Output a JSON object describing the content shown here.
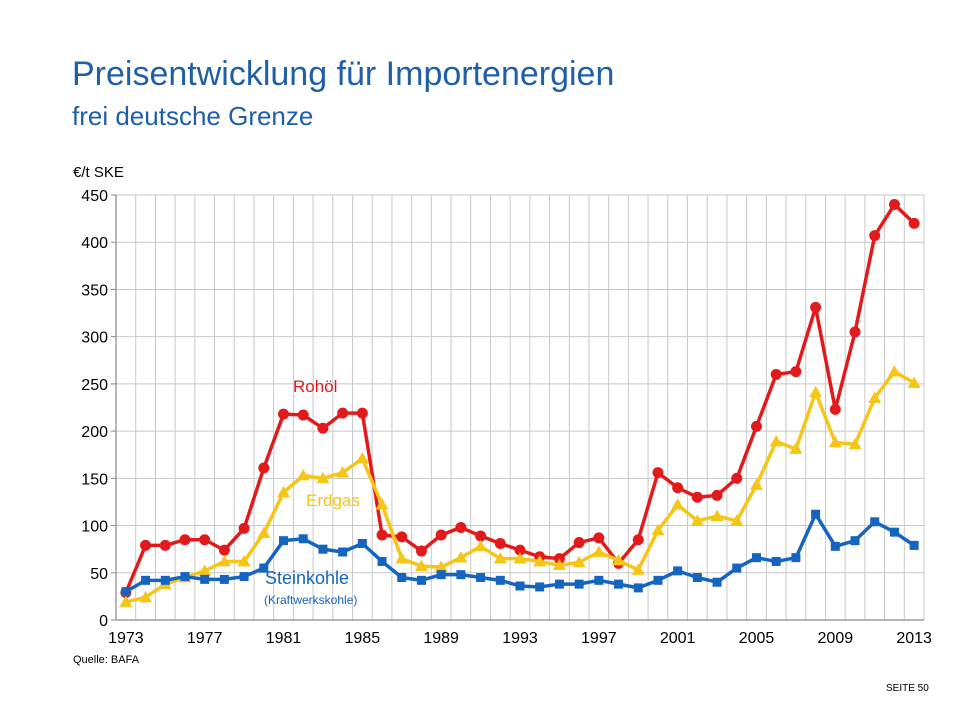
{
  "header": {
    "title": "Preisentwicklung für Importenergien",
    "subtitle": "frei deutsche Grenze"
  },
  "footer": {
    "source": "Quelle: BAFA",
    "page": "SEITE 50"
  },
  "chart_data": {
    "type": "line",
    "title": "Preisentwicklung für Importenergien",
    "subtitle": "frei deutsche Grenze",
    "ylabel": "€/t SKE",
    "xlabel": "",
    "ylim": [
      0,
      450
    ],
    "yticks": [
      0,
      50,
      100,
      150,
      200,
      250,
      300,
      350,
      400,
      450
    ],
    "xtick_labels": [
      "1973",
      "1977",
      "1981",
      "1985",
      "1989",
      "1993",
      "1997",
      "2001",
      "2005",
      "2009",
      "2013"
    ],
    "grid": true,
    "x": [
      1973,
      1974,
      1975,
      1976,
      1977,
      1978,
      1979,
      1980,
      1981,
      1982,
      1983,
      1984,
      1985,
      1986,
      1987,
      1988,
      1989,
      1990,
      1991,
      1992,
      1993,
      1994,
      1995,
      1996,
      1997,
      1998,
      1999,
      2000,
      2001,
      2002,
      2003,
      2004,
      2005,
      2006,
      2007,
      2008,
      2009,
      2010,
      2011,
      2012,
      2013
    ],
    "series": [
      {
        "name": "Rohöl",
        "color": "#e31a1c",
        "marker": "circle",
        "values": [
          29,
          79,
          79,
          85,
          85,
          74,
          97,
          161,
          218,
          217,
          203,
          219,
          219,
          90,
          88,
          73,
          90,
          98,
          89,
          81,
          74,
          67,
          65,
          82,
          87,
          60,
          85,
          156,
          140,
          130,
          132,
          150,
          205,
          260,
          263,
          331,
          223,
          305,
          407,
          440,
          420
        ]
      },
      {
        "name": "Erdgas",
        "color": "#f5c518",
        "marker": "triangle",
        "values": [
          19,
          24,
          38,
          45,
          52,
          62,
          62,
          92,
          135,
          153,
          150,
          156,
          171,
          122,
          65,
          57,
          56,
          66,
          78,
          65,
          65,
          62,
          58,
          61,
          72,
          63,
          53,
          95,
          122,
          105,
          110,
          105,
          143,
          189,
          181,
          241,
          188,
          186,
          235,
          263,
          251
        ]
      },
      {
        "name": "Steinkohle",
        "note": "(Kraftwerkskohle)",
        "color": "#1565c0",
        "marker": "square",
        "values": [
          30,
          42,
          42,
          46,
          43,
          43,
          46,
          55,
          84,
          86,
          75,
          72,
          81,
          62,
          45,
          42,
          48,
          48,
          45,
          42,
          36,
          35,
          38,
          38,
          42,
          38,
          34,
          42,
          52,
          45,
          40,
          55,
          66,
          62,
          66,
          112,
          78,
          84,
          104,
          93,
          79
        ]
      }
    ]
  }
}
